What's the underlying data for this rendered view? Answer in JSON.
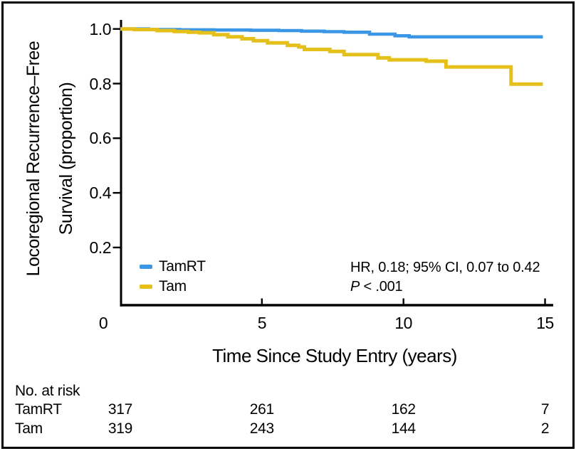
{
  "figure": {
    "background": "#ffffff",
    "border_color": "#000000"
  },
  "chart_data": {
    "type": "line",
    "subtype": "kaplan_meier_step",
    "title": "",
    "xlabel": "Time Since Study Entry (years)",
    "ylabel": "Locoregional Recurrence–Free Survival (proportion)",
    "ylabel_lines": [
      "Locoregional Recurrence–Free",
      "Survival (proportion)"
    ],
    "xlim": [
      0,
      15.2
    ],
    "ylim": [
      0,
      1.02
    ],
    "grid": false,
    "legend_position": "inside-lower-left",
    "xticks": [
      0,
      5,
      10,
      15
    ],
    "xtick_labels": [
      "0",
      "5",
      "10",
      "15"
    ],
    "yticks": [
      1.0,
      0.8,
      0.6,
      0.4,
      0.2
    ],
    "ytick_labels": [
      "1.0",
      "0.8",
      "0.6",
      "0.4",
      "0.2"
    ],
    "end_t": 14.92,
    "series": [
      {
        "name": "TamRT",
        "color": "#3B97E5",
        "points": [
          [
            0,
            1.0
          ],
          [
            1.0,
            0.998
          ],
          [
            2.1,
            0.997
          ],
          [
            3.3,
            0.996
          ],
          [
            4.6,
            0.995
          ],
          [
            5.6,
            0.994
          ],
          [
            6.4,
            0.992
          ],
          [
            7.2,
            0.99
          ],
          [
            7.9,
            0.988
          ],
          [
            8.8,
            0.981
          ],
          [
            9.7,
            0.975
          ],
          [
            10.2,
            0.971
          ],
          [
            14.92,
            0.971
          ]
        ]
      },
      {
        "name": "Tam",
        "color": "#E5C01A",
        "points": [
          [
            0,
            1.0
          ],
          [
            0.5,
            0.998
          ],
          [
            1.3,
            0.994
          ],
          [
            1.9,
            0.991
          ],
          [
            2.4,
            0.988
          ],
          [
            2.8,
            0.986
          ],
          [
            3.3,
            0.979
          ],
          [
            3.8,
            0.971
          ],
          [
            4.3,
            0.964
          ],
          [
            4.7,
            0.957
          ],
          [
            5.2,
            0.949
          ],
          [
            5.9,
            0.94
          ],
          [
            6.3,
            0.934
          ],
          [
            6.5,
            0.925
          ],
          [
            7.4,
            0.918
          ],
          [
            7.9,
            0.906
          ],
          [
            9.1,
            0.894
          ],
          [
            9.5,
            0.887
          ],
          [
            10.8,
            0.882
          ],
          [
            11.5,
            0.861
          ],
          [
            13.8,
            0.798
          ],
          [
            14.92,
            0.798
          ]
        ]
      }
    ],
    "annotation": {
      "line1": "HR, 0.18; 95% CI, 0.07 to 0.42",
      "line2_italic": "P",
      "line2_rest": " < .001"
    }
  },
  "risk_table": {
    "title": "No. at risk",
    "rows": [
      {
        "label": "TamRT",
        "values": [
          "317",
          "261",
          "162",
          "7"
        ]
      },
      {
        "label": "Tam",
        "values": [
          "319",
          "243",
          "144",
          "2"
        ]
      }
    ]
  }
}
